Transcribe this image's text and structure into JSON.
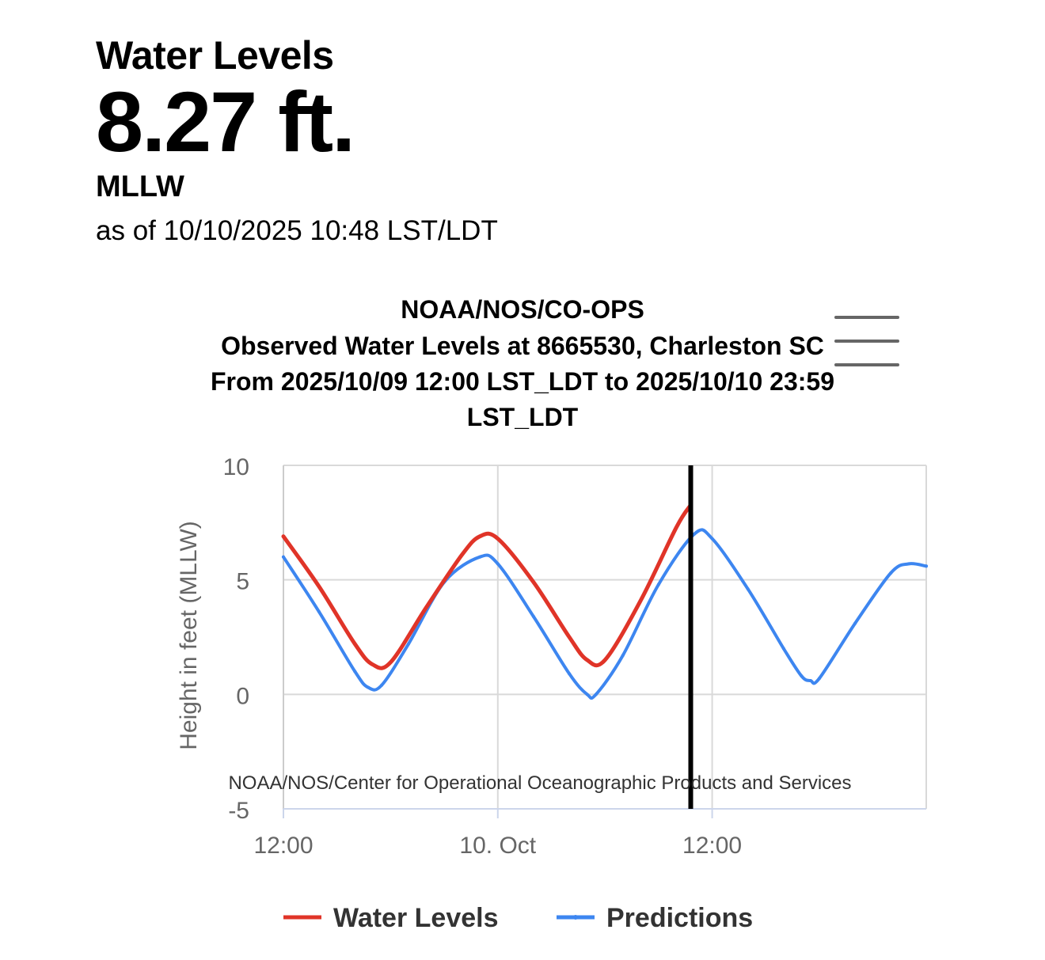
{
  "header": {
    "label": "Water Levels",
    "value": "8.27 ft.",
    "datum": "MLLW",
    "as_of": "as of 10/10/2025 10:48 LST/LDT"
  },
  "colors": {
    "water_levels": "#e03428",
    "predictions": "#3d86f0",
    "now_line": "#000000",
    "grid": "#d9d9d9",
    "axis_text": "#666666",
    "menu_icon": "#666666"
  },
  "chart_data": {
    "type": "line",
    "title": [
      "NOAA/NOS/CO-OPS",
      "Observed Water Levels at 8665530, Charleston SC",
      "From 2025/10/09 12:00 LST_LDT to 2025/10/10 23:59",
      "LST_LDT"
    ],
    "ylabel": "Height in feet (MLLW)",
    "xlabel": "",
    "credits": "NOAA/NOS/Center for Operational Oceanographic Products and Services",
    "ylim": [
      -5,
      10
    ],
    "yticks": [
      10,
      5,
      0,
      -5
    ],
    "xlim": [
      "2025-10-09 12:00",
      "2025-10-10 23:59"
    ],
    "xticks": [
      {
        "t": "2025-10-09 12:00",
        "label": "12:00"
      },
      {
        "t": "2025-10-10 00:00",
        "label": "10. Oct"
      },
      {
        "t": "2025-10-10 12:00",
        "label": "12:00"
      }
    ],
    "now_marker": "2025-10-10 10:48",
    "grid": true,
    "legend_position": "bottom-center",
    "menu_icon": "hamburger-menu-icon",
    "series": [
      {
        "name": "Water Levels",
        "points": [
          [
            "2025-10-09 12:00",
            6.9
          ],
          [
            "2025-10-09 14:00",
            4.7
          ],
          [
            "2025-10-09 16:00",
            2.2
          ],
          [
            "2025-10-09 17:00",
            1.3
          ],
          [
            "2025-10-09 18:00",
            1.4
          ],
          [
            "2025-10-09 20:00",
            3.8
          ],
          [
            "2025-10-09 22:00",
            6.1
          ],
          [
            "2025-10-09 23:00",
            6.9
          ],
          [
            "2025-10-10 00:00",
            6.8
          ],
          [
            "2025-10-10 02:00",
            4.9
          ],
          [
            "2025-10-10 04:00",
            2.5
          ],
          [
            "2025-10-10 05:00",
            1.5
          ],
          [
            "2025-10-10 06:00",
            1.5
          ],
          [
            "2025-10-10 08:00",
            4.1
          ],
          [
            "2025-10-10 10:00",
            7.3
          ],
          [
            "2025-10-10 10:48",
            8.27
          ]
        ]
      },
      {
        "name": "Predictions",
        "points": [
          [
            "2025-10-09 12:00",
            6.0
          ],
          [
            "2025-10-09 14:00",
            3.6
          ],
          [
            "2025-10-09 16:00",
            1.0
          ],
          [
            "2025-10-09 16:45",
            0.3
          ],
          [
            "2025-10-09 17:30",
            0.4
          ],
          [
            "2025-10-09 19:00",
            2.2
          ],
          [
            "2025-10-09 21:00",
            4.9
          ],
          [
            "2025-10-09 23:00",
            6.0
          ],
          [
            "2025-10-10 00:00",
            5.7
          ],
          [
            "2025-10-10 02:00",
            3.4
          ],
          [
            "2025-10-10 04:00",
            0.9
          ],
          [
            "2025-10-10 05:00",
            0.0
          ],
          [
            "2025-10-10 05:30",
            0.0
          ],
          [
            "2025-10-10 07:00",
            1.7
          ],
          [
            "2025-10-10 09:00",
            4.8
          ],
          [
            "2025-10-10 11:00",
            7.0
          ],
          [
            "2025-10-10 12:00",
            6.8
          ],
          [
            "2025-10-10 14:00",
            4.6
          ],
          [
            "2025-10-10 16:00",
            2.0
          ],
          [
            "2025-10-10 17:00",
            0.8
          ],
          [
            "2025-10-10 17:30",
            0.6
          ],
          [
            "2025-10-10 18:00",
            0.7
          ],
          [
            "2025-10-10 20:00",
            3.1
          ],
          [
            "2025-10-10 22:00",
            5.3
          ],
          [
            "2025-10-10 23:00",
            5.7
          ],
          [
            "2025-10-10 23:59",
            5.6
          ]
        ]
      }
    ]
  }
}
